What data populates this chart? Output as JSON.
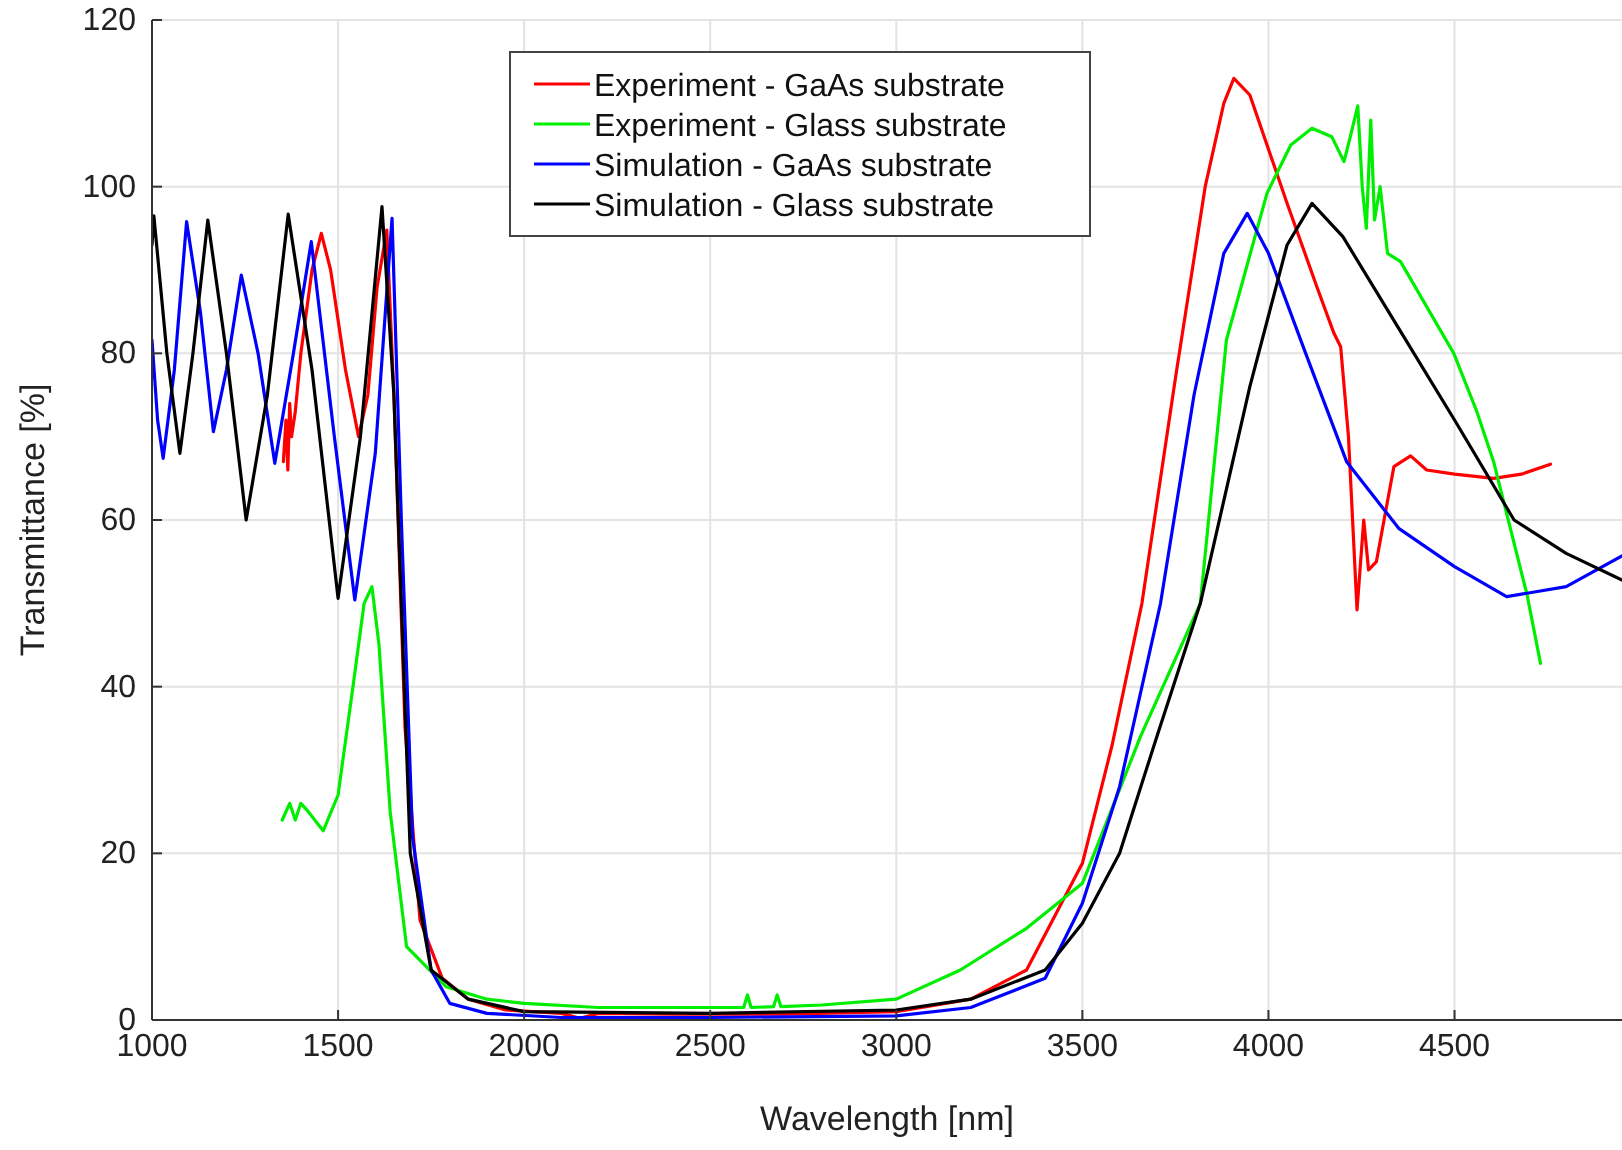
{
  "chart_data": {
    "type": "line",
    "xlabel": "Wavelength [nm]",
    "ylabel": "Transmittance [%]",
    "xlim": [
      1000,
      4950
    ],
    "ylim": [
      0,
      120
    ],
    "xticks": [
      1000,
      1500,
      2000,
      2500,
      3000,
      3500,
      4000,
      4500
    ],
    "yticks": [
      0,
      20,
      40,
      60,
      80,
      100,
      120
    ],
    "grid": true,
    "legend": "top",
    "line_style": "solid",
    "marker": "none",
    "series": [
      {
        "name": "Experiment - GaAs substrate",
        "color": "#ff0000",
        "x": [
          1353,
          1360,
          1365,
          1370,
          1375,
          1385,
          1400,
          1430,
          1455,
          1480,
          1520,
          1555,
          1580,
          1605,
          1631,
          1650,
          1680,
          1720,
          1780,
          1850,
          1950,
          2100,
          2150,
          2200,
          2400,
          2700,
          3000,
          3200,
          3350,
          3500,
          3580,
          3660,
          3750,
          3830,
          3880,
          3907,
          3950,
          4050,
          4130,
          4176,
          4194,
          4215,
          4238,
          4256,
          4269,
          4290,
          4337,
          4382,
          4425,
          4500,
          4605,
          4680,
          4758
        ],
        "values": [
          67,
          72,
          66,
          74,
          70,
          73,
          80,
          90,
          94.4,
          90,
          78,
          70,
          75,
          88,
          94.8,
          75,
          35,
          12,
          5,
          2.5,
          1.2,
          0.8,
          0.2,
          0.8,
          0.7,
          0.7,
          1,
          2.5,
          6,
          18.8,
          33,
          50,
          77,
          100,
          110,
          113,
          111,
          98,
          88,
          82.4,
          80.8,
          70,
          49.2,
          60,
          54,
          55,
          66.4,
          67.7,
          66,
          65.5,
          65,
          65.5,
          66.7
        ]
      },
      {
        "name": "Experiment - Glass substrate",
        "color": "#00ee00",
        "x": [
          1350,
          1370,
          1385,
          1400,
          1420,
          1460,
          1500,
          1540,
          1570,
          1591,
          1610,
          1640,
          1684,
          1790,
          1900,
          2000,
          2200,
          2500,
          2590,
          2600,
          2610,
          2670,
          2680,
          2690,
          2800,
          3000,
          3172,
          3350,
          3500,
          3656,
          3817,
          3887,
          3996,
          4060,
          4117,
          4170,
          4203,
          4220,
          4240,
          4252,
          4263,
          4275,
          4285,
          4300,
          4320,
          4355,
          4420,
          4498,
          4560,
          4605,
          4695,
          4731
        ],
        "values": [
          24,
          26,
          24,
          26,
          25,
          22.7,
          27,
          40,
          50,
          52,
          45,
          25,
          8.8,
          4,
          2.5,
          2,
          1.5,
          1.5,
          1.5,
          3,
          1.5,
          1.6,
          3,
          1.6,
          1.8,
          2.5,
          6,
          11,
          16.4,
          34,
          50,
          81.6,
          99.2,
          105,
          107,
          106,
          103,
          106,
          109.7,
          100,
          95,
          108,
          96,
          100,
          92,
          91,
          86,
          80,
          73,
          67,
          51,
          42.8
        ]
      },
      {
        "name": "Simulation - GaAs substrate",
        "color": "#0000ff",
        "x": [
          1000,
          1015,
          1030,
          1060,
          1093,
          1130,
          1165,
          1200,
          1240,
          1285,
          1330,
          1380,
          1428,
          1490,
          1545,
          1600,
          1645,
          1670,
          1700,
          1750,
          1800,
          1900,
          2100,
          2500,
          3000,
          3200,
          3400,
          3500,
          3600,
          3710,
          3800,
          3880,
          3943,
          4000,
          4100,
          4210,
          4350,
          4500,
          4640,
          4800,
          4950
        ],
        "values": [
          81.6,
          72,
          67.4,
          78,
          95.8,
          85,
          70.6,
          78,
          89.4,
          80,
          66.8,
          80,
          93.4,
          70,
          50.4,
          68,
          96.2,
          60,
          22,
          6,
          2,
          0.8,
          0.3,
          0.3,
          0.5,
          1.5,
          5,
          14,
          28,
          50,
          75,
          92,
          96.8,
          92,
          80,
          67,
          59,
          54.4,
          50.8,
          52,
          55.7
        ]
      },
      {
        "name": "Simulation - Glass substrate",
        "color": "#000000",
        "x": [
          1000,
          1005,
          1040,
          1075,
          1110,
          1150,
          1200,
          1253,
          1310,
          1366,
          1430,
          1500,
          1560,
          1618,
          1650,
          1694,
          1750,
          1850,
          2000,
          2500,
          3000,
          3200,
          3400,
          3500,
          3600,
          3700,
          3817,
          3950,
          4050,
          4117,
          4200,
          4350,
          4500,
          4660,
          4800,
          4950
        ],
        "values": [
          93,
          96.5,
          80,
          68,
          80,
          96,
          80,
          60,
          75,
          96.7,
          78,
          50.6,
          70,
          97.6,
          75,
          20,
          6,
          2.5,
          1,
          0.8,
          1.2,
          2.5,
          6,
          11.6,
          20,
          34,
          50,
          76,
          93,
          98,
          94,
          83,
          72,
          60,
          56,
          52.8
        ]
      }
    ]
  }
}
